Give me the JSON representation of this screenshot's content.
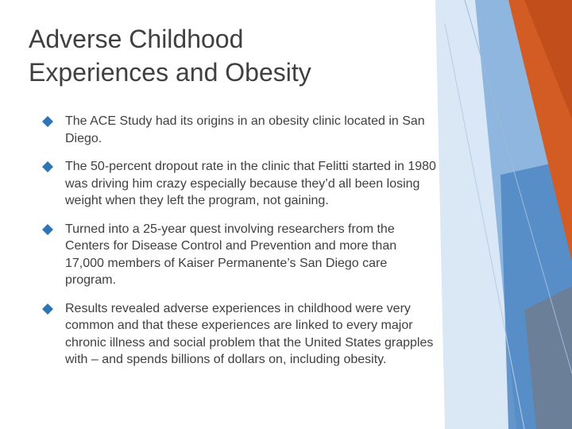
{
  "slide": {
    "title_lines": [
      "Adverse Childhood",
      "Experiences and Obesity"
    ],
    "bullet_icon": "diamond-bullet-icon",
    "bullets": [
      "The ACE Study had its origins in an obesity clinic located in San Diego.",
      "The 50-percent dropout rate in the clinic that Felitti started in 1980 was driving him crazy especially because they’d all been losing weight when they left the program, not gaining.",
      "Turned into a 25-year quest involving researchers from the Centers for Disease Control and Prevention and more than 17,000 members of Kaiser Permanente’s San Diego care program.",
      "Results revealed adverse experiences in childhood were very common and that these experiences are linked to every major chronic illness and social problem that the United States grapples with – and spends billions of dollars on, including obesity."
    ]
  },
  "theme": {
    "accent_orange": "#D35C25",
    "accent_blue": "#2E75B6",
    "light_blue": "#BDD7EE",
    "text_color": "#404040"
  }
}
